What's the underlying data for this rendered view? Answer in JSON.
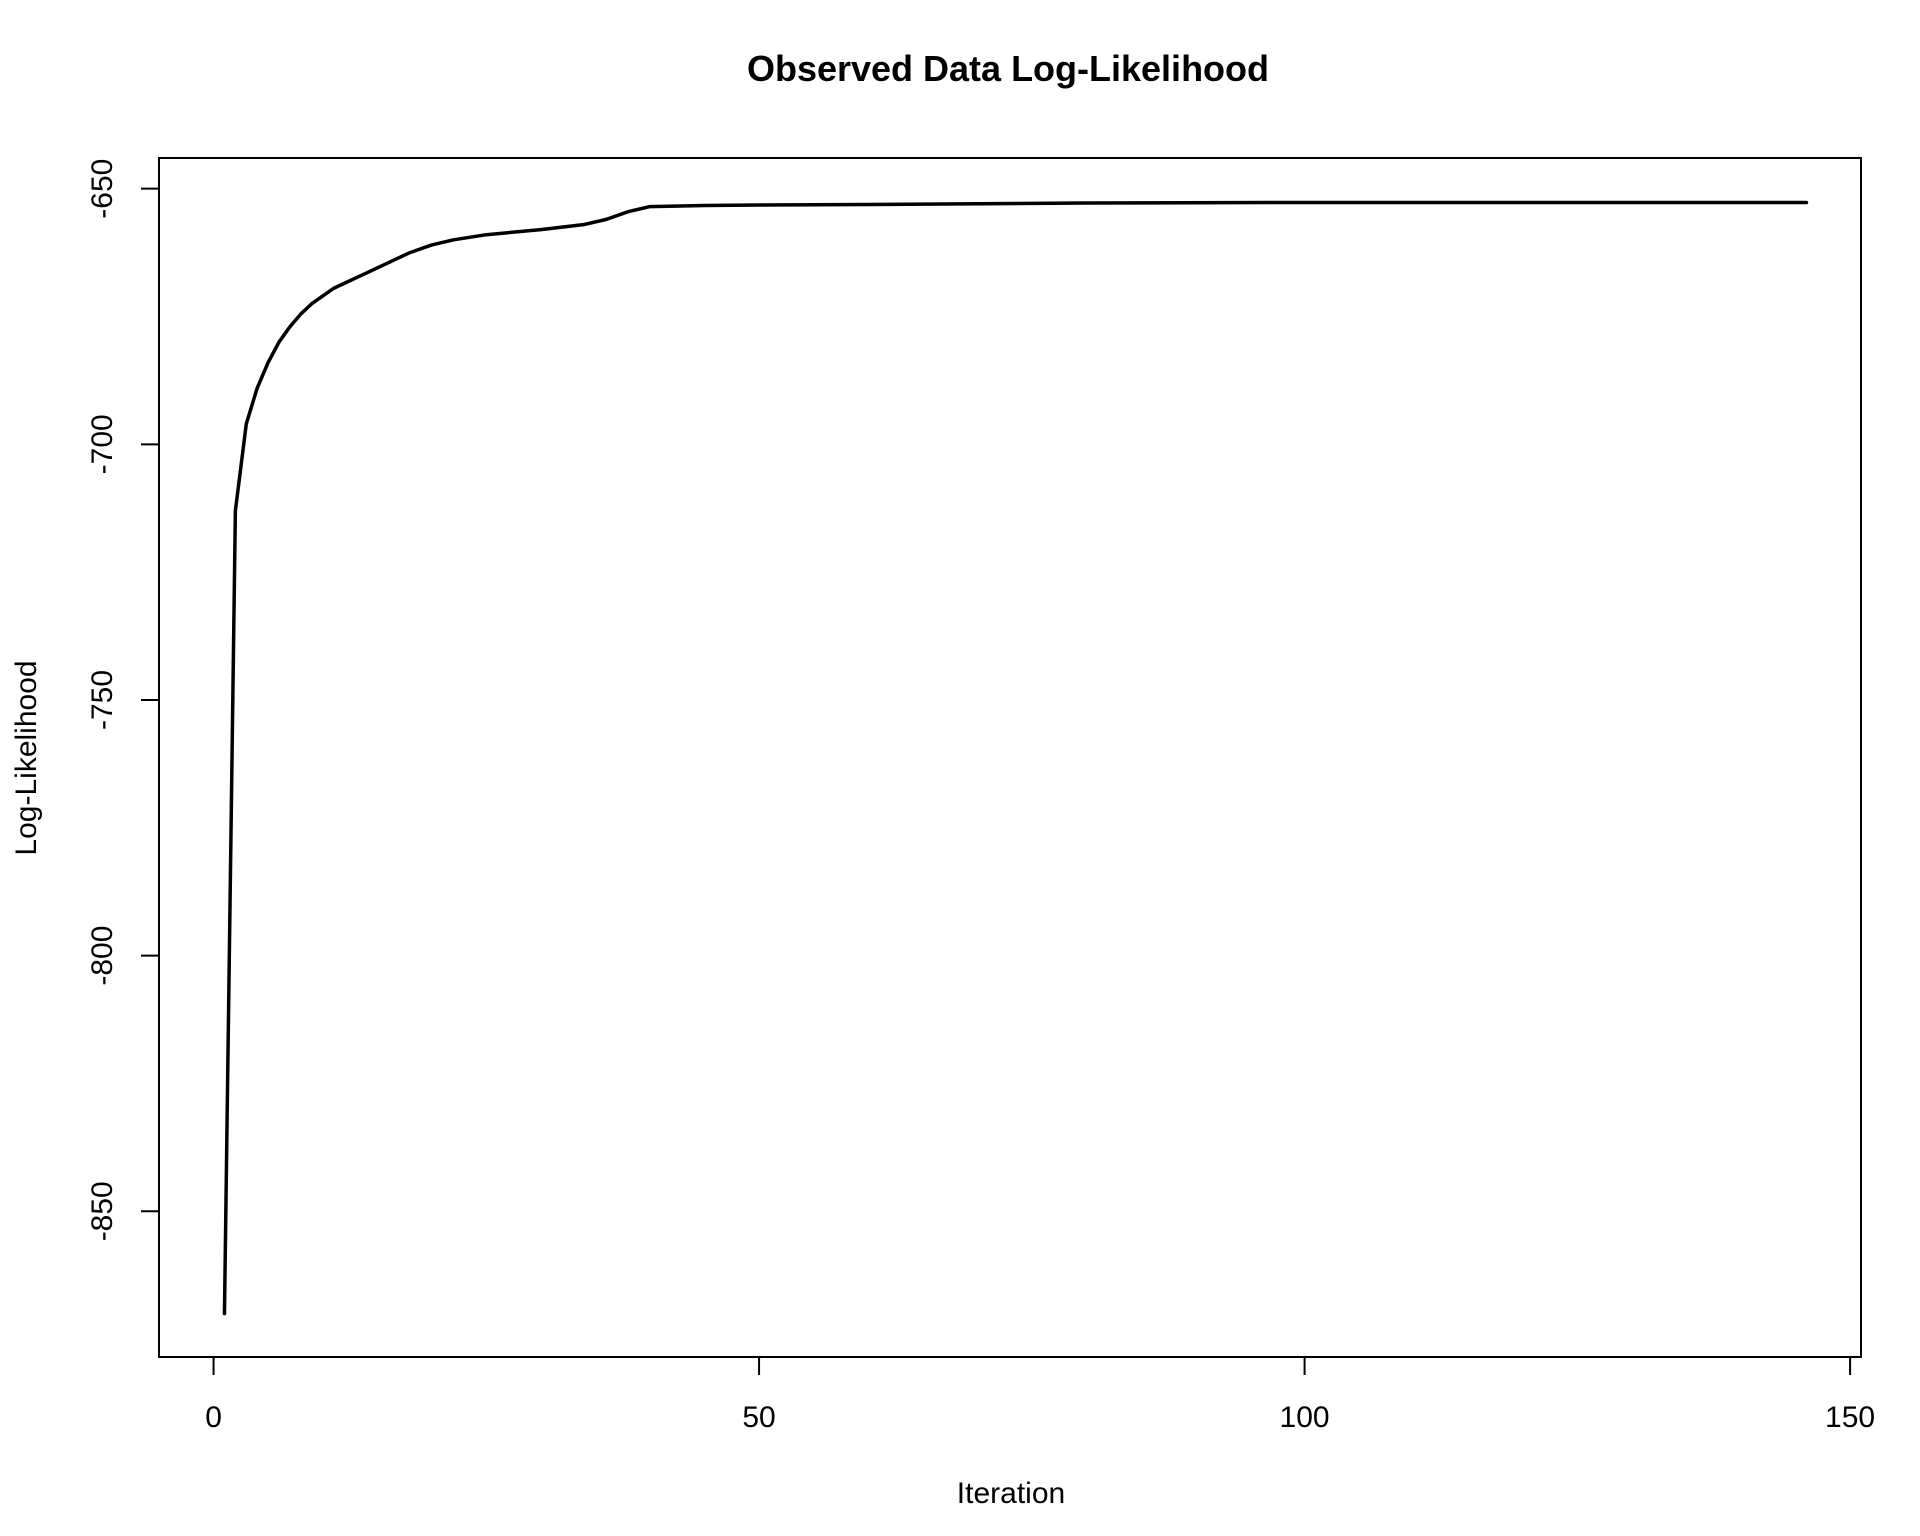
{
  "chart_data": {
    "type": "line",
    "title": "Observed Data Log-Likelihood",
    "xlabel": "Iteration",
    "ylabel": "Log-Likelihood",
    "xlim": [
      -5,
      151
    ],
    "ylim": [
      -878.5,
      -644
    ],
    "x_ticks": [
      0,
      50,
      100,
      150
    ],
    "y_ticks": [
      -650,
      -700,
      -750,
      -800,
      -850
    ],
    "x_tick_labels": [
      "0",
      "50",
      "100",
      "150"
    ],
    "y_tick_labels": [
      "-650",
      "-700",
      "-750",
      "-800",
      "-850"
    ],
    "grid": false,
    "legend": "none",
    "line_color": "#000000",
    "series": [
      {
        "name": "log-likelihood",
        "x": [
          1,
          2,
          3,
          4,
          5,
          6,
          7,
          8,
          9,
          10,
          11,
          12,
          14,
          16,
          18,
          20,
          22,
          25,
          30,
          34,
          36,
          38,
          40,
          45,
          50,
          60,
          80,
          100,
          120,
          146
        ],
        "values": [
          -870,
          -713,
          -696,
          -689,
          -684,
          -680,
          -677,
          -674.5,
          -672.5,
          -671,
          -669.5,
          -668.5,
          -666.5,
          -664.5,
          -662.5,
          -661,
          -660,
          -659,
          -658,
          -657,
          -656,
          -654.5,
          -653.5,
          -653.3,
          -653.2,
          -653.1,
          -652.8,
          -652.7,
          -652.7,
          -652.7
        ]
      }
    ]
  }
}
